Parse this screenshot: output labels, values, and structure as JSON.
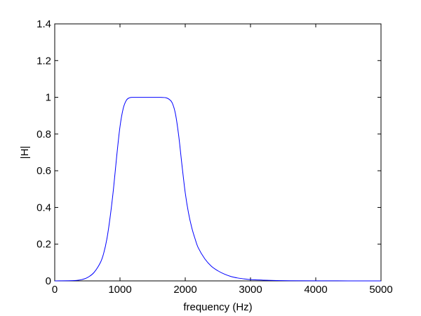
{
  "chart_data": {
    "type": "line",
    "title": "",
    "xlabel": "frequency (Hz)",
    "ylabel": "|H|",
    "xlim": [
      0,
      5000
    ],
    "ylim": [
      0,
      1.4
    ],
    "xticks": [
      0,
      1000,
      2000,
      3000,
      4000,
      5000
    ],
    "yticks": [
      0,
      0.2,
      0.4,
      0.6,
      0.8,
      1,
      1.2,
      1.4
    ],
    "xtick_labels": [
      "0",
      "1000",
      "2000",
      "3000",
      "4000",
      "5000"
    ],
    "ytick_labels": [
      "0",
      "0.2",
      "0.4",
      "0.6",
      "0.8",
      "1",
      "1.2",
      "1.4"
    ],
    "grid": false,
    "legend": "none",
    "line_color": "#0000ff",
    "series": [
      {
        "x": [
          0,
          300,
          400,
          500,
          600,
          700,
          750,
          800,
          850,
          900,
          950,
          1000,
          1050,
          1100,
          1150,
          1200,
          1300,
          1400,
          1500,
          1600,
          1700,
          1750,
          1800,
          1850,
          1900,
          1950,
          2000,
          2050,
          2100,
          2150,
          2200,
          2300,
          2400,
          2500,
          2600,
          2700,
          2800,
          2900,
          3000,
          3200,
          3400,
          3600,
          4000,
          4500,
          5000
        ],
        "y": [
          0,
          0.002,
          0.006,
          0.018,
          0.045,
          0.1,
          0.15,
          0.23,
          0.35,
          0.5,
          0.68,
          0.84,
          0.94,
          0.985,
          0.998,
          1.0,
          1.0,
          1.0,
          1.0,
          1.0,
          0.998,
          0.99,
          0.97,
          0.91,
          0.79,
          0.63,
          0.48,
          0.37,
          0.29,
          0.23,
          0.18,
          0.12,
          0.08,
          0.055,
          0.037,
          0.024,
          0.016,
          0.011,
          0.007,
          0.004,
          0.002,
          0.001,
          0.0004,
          0.0002,
          0.0001
        ]
      }
    ]
  }
}
